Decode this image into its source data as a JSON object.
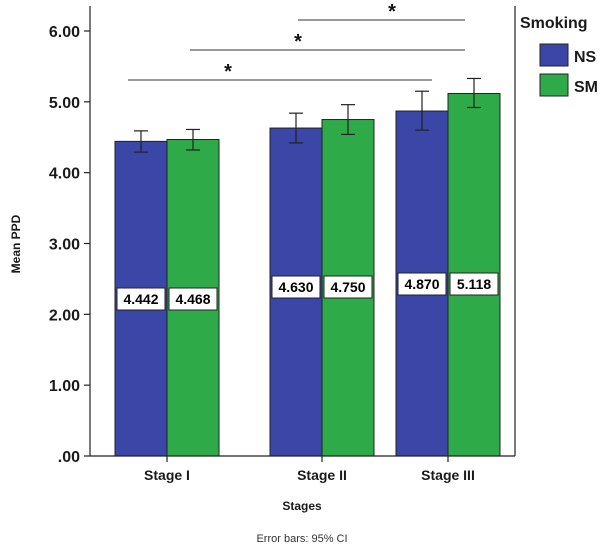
{
  "chart_data": {
    "type": "bar",
    "title": "",
    "xlabel": "Stages",
    "ylabel": "Mean PPD",
    "categories": [
      "Stage I",
      "Stage II",
      "Stage III"
    ],
    "ylim": [
      0,
      6.2
    ],
    "yticks": [
      0,
      1,
      2,
      3,
      4,
      5,
      6
    ],
    "ytick_labels": [
      ".00",
      "1.00",
      "2.00",
      "3.00",
      "4.00",
      "5.00",
      "6.00"
    ],
    "grid": false,
    "legend": {
      "title": "Smoking",
      "position": "right"
    },
    "series": [
      {
        "name": "NS",
        "color": "#3a47a6",
        "values": [
          4.442,
          4.63,
          4.87
        ],
        "labels": [
          "4.442",
          "4.630",
          "4.870"
        ],
        "ci_low": [
          4.29,
          4.42,
          4.6
        ],
        "ci_high": [
          4.59,
          4.84,
          5.15
        ]
      },
      {
        "name": "SM",
        "color": "#2eaa48",
        "values": [
          4.468,
          4.75,
          5.118
        ],
        "labels": [
          "4.468",
          "4.750",
          "5.118"
        ],
        "ci_low": [
          4.32,
          4.54,
          4.92
        ],
        "ci_high": [
          4.61,
          4.96,
          5.33
        ]
      }
    ],
    "significance": [
      {
        "from": "Stage I",
        "to": "Stage III",
        "label": "*"
      },
      {
        "from": "Stage I",
        "to": "Stage III",
        "label": "*"
      },
      {
        "from": "Stage II",
        "to": "Stage III",
        "label": "*"
      }
    ],
    "footnote": "Error bars: 95% CI"
  }
}
